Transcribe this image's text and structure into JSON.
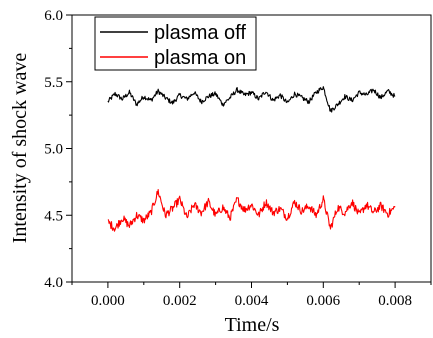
{
  "chart_data": {
    "type": "line",
    "title": "",
    "xlabel": "Time/s",
    "ylabel": "Intensity of shock wave",
    "xlim": [
      -0.001,
      0.009
    ],
    "ylim": [
      4.0,
      6.0
    ],
    "x_ticks": [
      "0.000",
      "0.002",
      "0.004",
      "0.006",
      "0.008"
    ],
    "x_tick_values": [
      0.0,
      0.002,
      0.004,
      0.006,
      0.008
    ],
    "y_ticks": [
      "4.0",
      "4.5",
      "5.0",
      "5.5",
      "6.0"
    ],
    "y_tick_values": [
      4.0,
      4.5,
      5.0,
      5.5,
      6.0
    ],
    "legend_position": "top-left",
    "grid": false,
    "series": [
      {
        "name": "plasma off",
        "color": "#000000",
        "x": [
          0.0,
          0.0002,
          0.0004,
          0.0006,
          0.0008,
          0.001,
          0.0012,
          0.0014,
          0.0016,
          0.0018,
          0.002,
          0.0022,
          0.0024,
          0.0026,
          0.0028,
          0.003,
          0.0032,
          0.0034,
          0.0036,
          0.0038,
          0.004,
          0.0042,
          0.0044,
          0.0046,
          0.0048,
          0.005,
          0.0052,
          0.0054,
          0.0056,
          0.0058,
          0.006,
          0.0062,
          0.0064,
          0.0066,
          0.0068,
          0.007,
          0.0072,
          0.0074,
          0.0076,
          0.0078,
          0.008
        ],
        "y": [
          5.35,
          5.41,
          5.37,
          5.42,
          5.33,
          5.39,
          5.36,
          5.43,
          5.38,
          5.34,
          5.4,
          5.37,
          5.42,
          5.35,
          5.39,
          5.41,
          5.33,
          5.38,
          5.44,
          5.4,
          5.42,
          5.37,
          5.43,
          5.36,
          5.4,
          5.34,
          5.41,
          5.38,
          5.35,
          5.42,
          5.46,
          5.28,
          5.33,
          5.39,
          5.36,
          5.42,
          5.4,
          5.44,
          5.38,
          5.43,
          5.39
        ]
      },
      {
        "name": "plasma on",
        "color": "#ff0000",
        "x": [
          0.0,
          0.0002,
          0.0004,
          0.0006,
          0.0008,
          0.001,
          0.0012,
          0.0014,
          0.0016,
          0.0018,
          0.002,
          0.0022,
          0.0024,
          0.0026,
          0.0028,
          0.003,
          0.0032,
          0.0034,
          0.0036,
          0.0038,
          0.004,
          0.0042,
          0.0044,
          0.0046,
          0.0048,
          0.005,
          0.0052,
          0.0054,
          0.0056,
          0.0058,
          0.006,
          0.0062,
          0.0064,
          0.0066,
          0.0068,
          0.007,
          0.0072,
          0.0074,
          0.0076,
          0.0078,
          0.008
        ],
        "y": [
          4.45,
          4.4,
          4.48,
          4.42,
          4.5,
          4.46,
          4.52,
          4.68,
          4.5,
          4.55,
          4.62,
          4.48,
          4.58,
          4.52,
          4.6,
          4.5,
          4.56,
          4.48,
          4.62,
          4.54,
          4.58,
          4.5,
          4.6,
          4.52,
          4.55,
          4.48,
          4.6,
          4.53,
          4.57,
          4.5,
          4.62,
          4.4,
          4.56,
          4.52,
          4.6,
          4.5,
          4.58,
          4.52,
          4.57,
          4.51,
          4.56
        ]
      }
    ]
  }
}
